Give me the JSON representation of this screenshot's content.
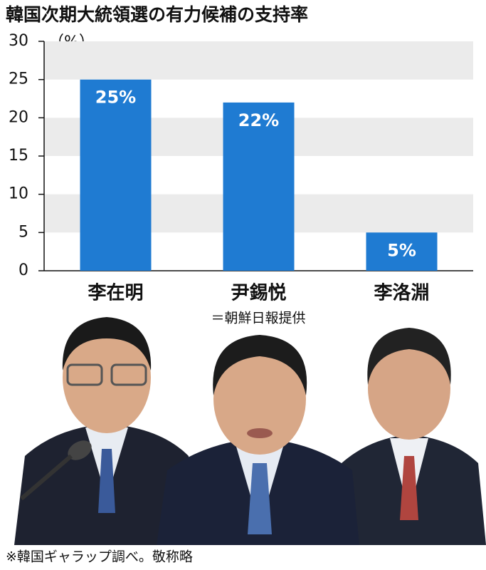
{
  "chart_data": {
    "type": "bar",
    "title": "韓国次期大統領選の有力候補の支持率",
    "y_unit": "（%）",
    "categories": [
      "李在明",
      "尹錫悦",
      "李洛淵"
    ],
    "values": [
      25,
      22,
      5
    ],
    "value_labels": [
      "25%",
      "22%",
      "5%"
    ],
    "color": "#1f7bd2",
    "ylim": [
      0,
      30
    ],
    "yticks": [
      0,
      5,
      10,
      15,
      20,
      25,
      30
    ],
    "grid": true,
    "caption": "＝朝鮮日報提供",
    "footnote": "※韓国ギャラップ調べ。敬称略"
  }
}
